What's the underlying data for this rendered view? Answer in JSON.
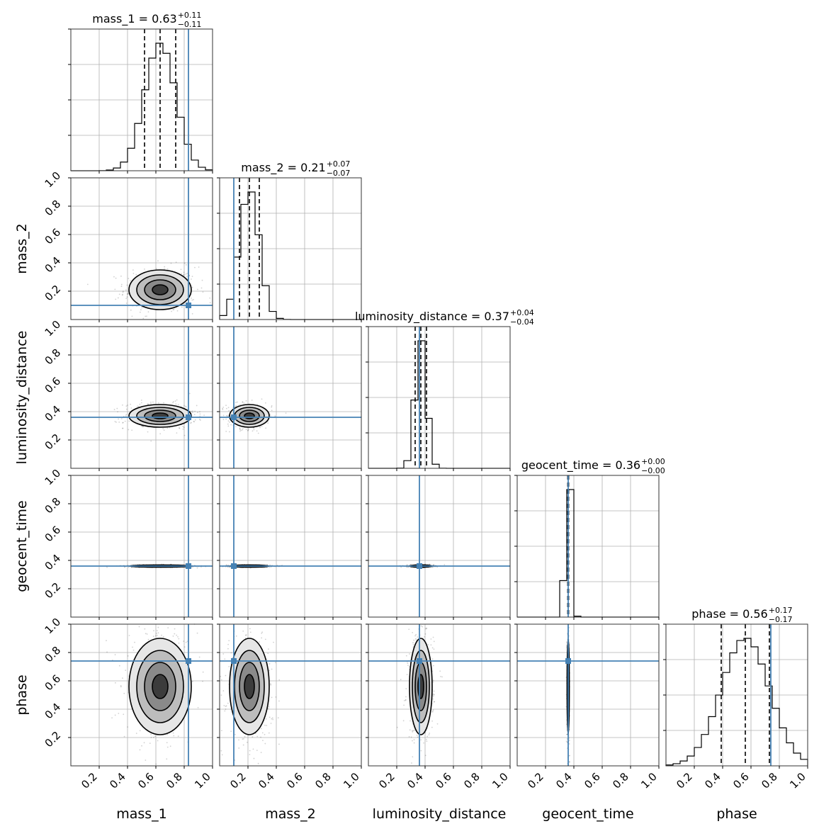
{
  "chart_data": {
    "type": "corner",
    "parameters": [
      "mass_1",
      "mass_2",
      "luminosity_distance",
      "geocent_time",
      "phase"
    ],
    "titles": [
      {
        "label": "mass_1 = 0.63",
        "plus": "+0.11",
        "minus": "−0.11"
      },
      {
        "label": "mass_2 = 0.21",
        "plus": "+0.07",
        "minus": "−0.07"
      },
      {
        "label": "luminosity_distance = 0.37",
        "plus": "+0.04",
        "minus": "−0.04"
      },
      {
        "label": "geocent_time = 0.36",
        "plus": "+0.00",
        "minus": "−0.00"
      },
      {
        "label": "phase = 0.56",
        "plus": "+0.17",
        "minus": "−0.17"
      }
    ],
    "medians": [
      0.63,
      0.21,
      0.37,
      0.36,
      0.56
    ],
    "sigma": [
      0.11,
      0.07,
      0.04,
      0.003,
      0.17
    ],
    "quantiles": [
      [
        0.52,
        0.63,
        0.74
      ],
      [
        0.14,
        0.21,
        0.28
      ],
      [
        0.33,
        0.37,
        0.41
      ],
      [
        0.357,
        0.36,
        0.363
      ],
      [
        0.39,
        0.56,
        0.73
      ]
    ],
    "truths": [
      0.83,
      0.1,
      0.36,
      0.36,
      0.74
    ],
    "truth_color": "#4682b4",
    "axis_range": [
      0,
      1
    ],
    "tick_labels": [
      "0.2",
      "0.4",
      "0.6",
      "0.8",
      "1.0"
    ],
    "grid": true,
    "contour_levels_sigma": [
      0.5,
      1.0,
      1.5,
      2.0
    ],
    "histogram_bins": 20
  }
}
